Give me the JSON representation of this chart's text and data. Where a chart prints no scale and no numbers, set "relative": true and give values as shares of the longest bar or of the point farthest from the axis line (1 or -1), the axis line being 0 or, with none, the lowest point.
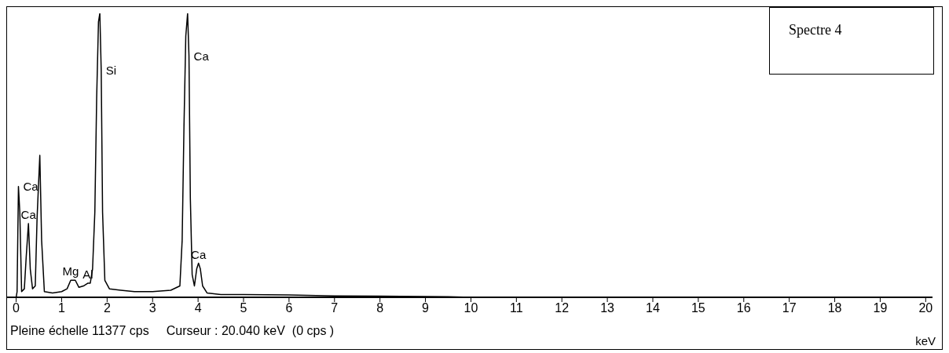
{
  "chart_data": {
    "type": "line",
    "title": "Spectre 4",
    "xlabel": "keV",
    "relative": true,
    "marker": "none",
    "line_style": "solid",
    "xlim": [
      -0.2,
      20.15
    ],
    "xticks": [
      0,
      1,
      2,
      3,
      4,
      5,
      6,
      7,
      8,
      9,
      10,
      11,
      12,
      13,
      14,
      15,
      16,
      17,
      18,
      19,
      20
    ],
    "x": [
      0,
      0.02,
      0.05,
      0.08,
      0.12,
      0.18,
      0.22,
      0.27,
      0.31,
      0.36,
      0.42,
      0.46,
      0.52,
      0.56,
      0.62,
      0.8,
      1.0,
      1.12,
      1.2,
      1.3,
      1.38,
      1.48,
      1.58,
      1.63,
      1.68,
      1.73,
      1.77,
      1.81,
      1.84,
      1.87,
      1.9,
      1.95,
      2.05,
      2.3,
      2.6,
      3.0,
      3.4,
      3.6,
      3.65,
      3.69,
      3.73,
      3.77,
      3.8,
      3.83,
      3.87,
      3.92,
      3.97,
      4.01,
      4.05,
      4.1,
      4.2,
      4.5,
      5.0,
      6.0,
      7.0,
      8.0,
      9.0,
      9.5,
      10.0,
      20.0
    ],
    "series": [
      {
        "color": "#000000",
        "values": [
          0,
          0.02,
          0.39,
          0.3,
          0.02,
          0.03,
          0.14,
          0.26,
          0.1,
          0.03,
          0.04,
          0.28,
          0.5,
          0.2,
          0.02,
          0.015,
          0.02,
          0.03,
          0.06,
          0.06,
          0.035,
          0.04,
          0.05,
          0.05,
          0.1,
          0.3,
          0.7,
          0.97,
          1.0,
          0.8,
          0.3,
          0.06,
          0.03,
          0.025,
          0.02,
          0.02,
          0.025,
          0.04,
          0.2,
          0.6,
          0.92,
          1.0,
          0.85,
          0.35,
          0.08,
          0.04,
          0.1,
          0.12,
          0.1,
          0.04,
          0.015,
          0.01,
          0.01,
          0.008,
          0.005,
          0.004,
          0.003,
          0.002,
          0,
          0
        ]
      }
    ],
    "annotations": [
      {
        "text": "Si",
        "x": 1.87,
        "y": 0.8
      },
      {
        "text": "Ca",
        "x": 3.8,
        "y": 0.85
      },
      {
        "text": "Ca",
        "x": 0.05,
        "y": 0.39
      },
      {
        "text": "Ca",
        "x": 0.27,
        "y": 0.26
      },
      {
        "text": "Mg",
        "x": 1.2,
        "y": 0.06
      },
      {
        "text": "Al",
        "x": 1.58,
        "y": 0.05
      },
      {
        "text": "Ca",
        "x": 4.01,
        "y": 0.12
      },
      "Pleine échelle 11377 cps",
      "Curseur : 20.040 keV  (0 cps )"
    ]
  }
}
